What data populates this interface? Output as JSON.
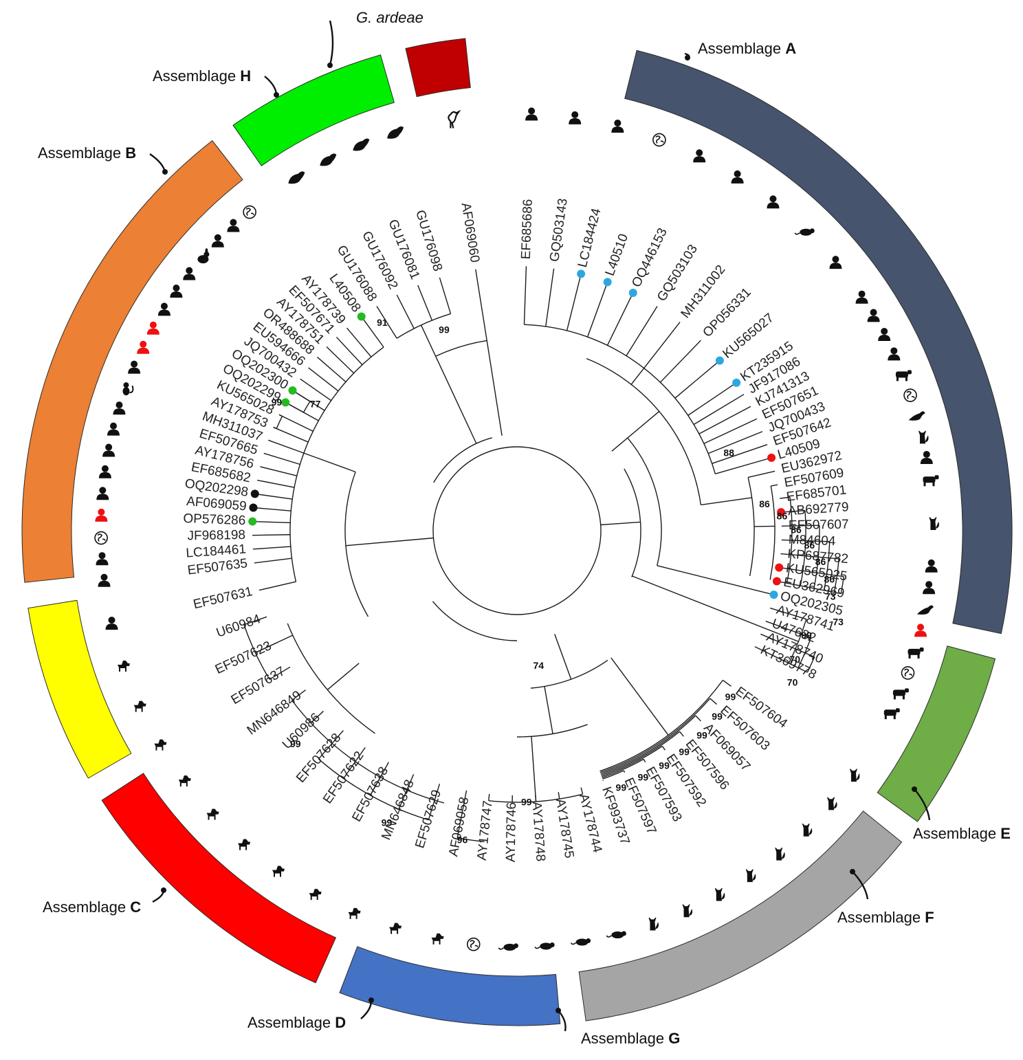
{
  "colors": {
    "A": "#46546d",
    "B": "#ec8034",
    "C": "#ffff00",
    "D": "#ff0000",
    "E": "#6fad47",
    "F": "#a5a5a5",
    "G": "#4472c4",
    "H": "#00ee00",
    "ardeae": "#c00000",
    "marker_blue": "#2ea7e0",
    "marker_red": "#ee1111",
    "marker_green": "#22bb22",
    "marker_black": "#111111",
    "host_red": "#ee1111",
    "host_black": "#111111"
  },
  "assemblages": [
    {
      "id": "A",
      "prefix": "Assemblage ",
      "letter": "A",
      "color": "#46546d",
      "from": 14,
      "to": 102
    },
    {
      "id": "E",
      "prefix": "Assemblage ",
      "letter": "E",
      "color": "#6fad47",
      "from": 105,
      "to": 126
    },
    {
      "id": "F",
      "prefix": "Assemblage ",
      "letter": "F",
      "color": "#a5a5a5",
      "from": 129,
      "to": 172
    },
    {
      "id": "G",
      "prefix": "Assemblage ",
      "letter": "G",
      "color": "#4472c4",
      "from": 175,
      "to": 201
    },
    {
      "id": "D",
      "prefix": "Assemblage ",
      "letter": "D",
      "color": "#ff0000",
      "from": 204,
      "to": 237
    },
    {
      "id": "C",
      "prefix": "Assemblage ",
      "letter": "C",
      "color": "#ffff00",
      "from": 240,
      "to": 261
    },
    {
      "id": "B",
      "prefix": "Assemblage ",
      "letter": "B",
      "color": "#ec8034",
      "from": 264,
      "to": 322
    },
    {
      "id": "H",
      "prefix": "Assemblage ",
      "letter": "H",
      "color": "#00ee00",
      "from": 325,
      "to": 344
    },
    {
      "id": "ardeae",
      "prefix": "",
      "letter": "",
      "italic": "G. ardeae",
      "color": "#c00000",
      "from": 347,
      "to": 354
    }
  ],
  "leaves": [
    {
      "id": "EF685686",
      "angle": 2,
      "marker": "",
      "host": "human",
      "hc": "black"
    },
    {
      "id": "GQ503143",
      "angle": 8,
      "marker": "",
      "host": "human",
      "hc": "black"
    },
    {
      "id": "LC184424",
      "angle": 14,
      "marker": "blue",
      "host": "human",
      "hc": "black"
    },
    {
      "id": "L40510",
      "angle": 20,
      "marker": "blue",
      "host": "world",
      "hc": "black"
    },
    {
      "id": "OQ446153",
      "angle": 26,
      "marker": "blue",
      "host": "human",
      "hc": "black"
    },
    {
      "id": "GQ503103",
      "angle": 32,
      "marker": "",
      "host": "human",
      "hc": "black"
    },
    {
      "id": "MH311002",
      "angle": 38,
      "marker": "",
      "host": "human",
      "hc": "black"
    },
    {
      "id": "OP056331",
      "angle": 44,
      "marker": "",
      "host": "rodent",
      "hc": "black"
    },
    {
      "id": "KU565027",
      "angle": 50,
      "marker": "blue",
      "host": "human",
      "hc": "black"
    },
    {
      "id": "KT235915",
      "angle": 56,
      "marker": "blue",
      "host": "human",
      "hc": "black"
    },
    {
      "id": "JF917086",
      "angle": 59,
      "marker": "",
      "host": "human",
      "hc": "black"
    },
    {
      "id": "KJ741313",
      "angle": 62,
      "marker": "",
      "host": "human",
      "hc": "black"
    },
    {
      "id": "EF507651",
      "angle": 65,
      "marker": "",
      "host": "human",
      "hc": "black"
    },
    {
      "id": "JQ700433",
      "angle": 68,
      "marker": "",
      "host": "cow",
      "hc": "black"
    },
    {
      "id": "EF507642",
      "angle": 71,
      "marker": "",
      "host": "world",
      "hc": "black"
    },
    {
      "id": "L40509",
      "angle": 74,
      "marker": "red",
      "host": "seal",
      "hc": "black"
    },
    {
      "id": "EU362972",
      "angle": 77,
      "marker": "",
      "host": "cat",
      "hc": "black"
    },
    {
      "id": "EF507609",
      "angle": 80,
      "marker": "",
      "host": "human",
      "hc": "black"
    },
    {
      "id": "EF685701",
      "angle": 83,
      "marker": "",
      "host": "sheep",
      "hc": "black"
    },
    {
      "id": "AB692779",
      "angle": 86,
      "marker": "red",
      "host": "",
      "hc": "black"
    },
    {
      "id": "EF507607",
      "angle": 89,
      "marker": "",
      "host": "cat",
      "hc": "black"
    },
    {
      "id": "M84604",
      "angle": 92,
      "marker": "",
      "host": "",
      "hc": "black"
    },
    {
      "id": "KP687782",
      "angle": 95,
      "marker": "",
      "host": "human",
      "hc": "black"
    },
    {
      "id": "KU565025",
      "angle": 98,
      "marker": "red",
      "host": "human",
      "hc": "black"
    },
    {
      "id": "EU362969",
      "angle": 101,
      "marker": "red",
      "host": "seal",
      "hc": "black"
    },
    {
      "id": "OQ202305",
      "angle": 104,
      "marker": "blue",
      "host": "human",
      "hc": "red"
    },
    {
      "id": "AY178741",
      "angle": 107,
      "marker": "",
      "host": "pig",
      "hc": "black"
    },
    {
      "id": "U47632",
      "angle": 110,
      "marker": "",
      "host": "world",
      "hc": "black"
    },
    {
      "id": "AY178740",
      "angle": 113,
      "marker": "",
      "host": "cow",
      "hc": "black"
    },
    {
      "id": "KT369778",
      "angle": 116,
      "marker": "",
      "host": "cow",
      "hc": "black"
    },
    {
      "id": "EF507604",
      "angle": 126,
      "marker": "",
      "host": "cat",
      "hc": "black"
    },
    {
      "id": "EF507603",
      "angle": 131,
      "marker": "",
      "host": "cat",
      "hc": "black"
    },
    {
      "id": "AF069057",
      "angle": 136,
      "marker": "",
      "host": "cat",
      "hc": "black"
    },
    {
      "id": "EF507596",
      "angle": 141,
      "marker": "",
      "host": "cat",
      "hc": "black"
    },
    {
      "id": "EF507592",
      "angle": 146,
      "marker": "",
      "host": "cat",
      "hc": "black"
    },
    {
      "id": "EF507593",
      "angle": 151,
      "marker": "",
      "host": "cat",
      "hc": "black"
    },
    {
      "id": "EF507597",
      "angle": 156,
      "marker": "",
      "host": "cat",
      "hc": "black"
    },
    {
      "id": "KF993737",
      "angle": 161,
      "marker": "",
      "host": "cat",
      "hc": "black"
    },
    {
      "id": "AY178744",
      "angle": 166,
      "marker": "",
      "host": "rodent",
      "hc": "black"
    },
    {
      "id": "AY178745",
      "angle": 171,
      "marker": "",
      "host": "rodent",
      "hc": "black"
    },
    {
      "id": "AY178748",
      "angle": 176,
      "marker": "",
      "host": "rodent",
      "hc": "black"
    },
    {
      "id": "AY178746",
      "angle": 181,
      "marker": "",
      "host": "rodent",
      "hc": "black"
    },
    {
      "id": "AY178747",
      "angle": 186,
      "marker": "",
      "host": "world",
      "hc": "black"
    },
    {
      "id": "AF069058",
      "angle": 191,
      "marker": "",
      "host": "dog",
      "hc": "black"
    },
    {
      "id": "EF507629",
      "angle": 197,
      "marker": "",
      "host": "dog",
      "hc": "black"
    },
    {
      "id": "MN646848",
      "angle": 203,
      "marker": "",
      "host": "dog",
      "hc": "black"
    },
    {
      "id": "EF507638",
      "angle": 209,
      "marker": "",
      "host": "dog",
      "hc": "black"
    },
    {
      "id": "EF507622",
      "angle": 215,
      "marker": "",
      "host": "dog",
      "hc": "black"
    },
    {
      "id": "EF507628",
      "angle": 221,
      "marker": "",
      "host": "dog",
      "hc": "black"
    },
    {
      "id": "U60986",
      "angle": 227,
      "marker": "",
      "host": "dog",
      "hc": "black"
    },
    {
      "id": "MN646849",
      "angle": 233,
      "marker": "",
      "host": "dog",
      "hc": "black"
    },
    {
      "id": "EF507637",
      "angle": 239,
      "marker": "",
      "host": "dog",
      "hc": "black"
    },
    {
      "id": "EF507623",
      "angle": 245,
      "marker": "",
      "host": "dog",
      "hc": "black"
    },
    {
      "id": "U60984",
      "angle": 251,
      "marker": "",
      "host": "dog",
      "hc": "black"
    },
    {
      "id": "EF507631",
      "angle": 257,
      "marker": "",
      "host": "human",
      "hc": "black"
    },
    {
      "id": "EF507635",
      "angle": 263,
      "marker": "",
      "host": "human",
      "hc": "black"
    },
    {
      "id": "LC184461",
      "angle": 266,
      "marker": "",
      "host": "human",
      "hc": "black"
    },
    {
      "id": "JF968198",
      "angle": 269,
      "marker": "",
      "host": "world",
      "hc": "black"
    },
    {
      "id": "OP576286",
      "angle": 272,
      "marker": "green",
      "host": "human",
      "hc": "red"
    },
    {
      "id": "AF069059",
      "angle": 275,
      "marker": "black",
      "host": "human",
      "hc": "black"
    },
    {
      "id": "OQ202298",
      "angle": 278,
      "marker": "black",
      "host": "human",
      "hc": "black"
    },
    {
      "id": "EF685682",
      "angle": 281,
      "marker": "",
      "host": "human",
      "hc": "black"
    },
    {
      "id": "AY178756",
      "angle": 284,
      "marker": "",
      "host": "human",
      "hc": "black"
    },
    {
      "id": "EF507665",
      "angle": 287,
      "marker": "",
      "host": "human",
      "hc": "black"
    },
    {
      "id": "MH311037",
      "angle": 290,
      "marker": "",
      "host": "monkey",
      "hc": "black"
    },
    {
      "id": "AY178753",
      "angle": 293,
      "marker": "",
      "host": "human",
      "hc": "black"
    },
    {
      "id": "KU565028",
      "angle": 296,
      "marker": "",
      "host": "human",
      "hc": "red"
    },
    {
      "id": "OQ202299",
      "angle": 299,
      "marker": "green",
      "host": "human",
      "hc": "red"
    },
    {
      "id": "OQ202300",
      "angle": 302,
      "marker": "green",
      "host": "human",
      "hc": "black"
    },
    {
      "id": "JQ700432",
      "angle": 305,
      "marker": "",
      "host": "human",
      "hc": "black"
    },
    {
      "id": "EU594666",
      "angle": 308,
      "marker": "",
      "host": "human",
      "hc": "black"
    },
    {
      "id": "OR488688",
      "angle": 311,
      "marker": "",
      "host": "chinchilla",
      "hc": "black"
    },
    {
      "id": "AY178751",
      "angle": 314,
      "marker": "",
      "host": "human",
      "hc": "black"
    },
    {
      "id": "EF507671",
      "angle": 317,
      "marker": "",
      "host": "human",
      "hc": "black"
    },
    {
      "id": "AY178739",
      "angle": 320,
      "marker": "",
      "host": "world",
      "hc": "black"
    },
    {
      "id": "L40508",
      "angle": 324,
      "marker": "green",
      "host": "",
      "hc": "black"
    },
    {
      "id": "GU176088",
      "angle": 328,
      "marker": "",
      "host": "muskrat",
      "hc": "black"
    },
    {
      "id": "GU176092",
      "angle": 333,
      "marker": "",
      "host": "muskrat",
      "hc": "black"
    },
    {
      "id": "GU176081",
      "angle": 338,
      "marker": "",
      "host": "muskrat",
      "hc": "black"
    },
    {
      "id": "GU176098",
      "angle": 343,
      "marker": "",
      "host": "muskrat",
      "hc": "black"
    },
    {
      "id": "AF069060",
      "angle": 351,
      "marker": "",
      "host": "heron",
      "hc": "black"
    }
  ],
  "bootstrap": [
    {
      "v": "99",
      "angle": 340,
      "r": 310
    },
    {
      "v": "91",
      "angle": 327,
      "r": 360
    },
    {
      "v": "77",
      "angle": 302,
      "r": 346
    },
    {
      "v": "99",
      "angle": 298,
      "r": 396
    },
    {
      "v": "88",
      "angle": 70,
      "r": 328
    },
    {
      "v": "86",
      "angle": 84,
      "r": 362
    },
    {
      "v": "86",
      "angle": 87,
      "r": 386
    },
    {
      "v": "86",
      "angle": 90,
      "r": 406
    },
    {
      "v": "86",
      "angle": 93,
      "r": 426
    },
    {
      "v": "86",
      "angle": 96,
      "r": 444
    },
    {
      "v": "86",
      "angle": 99,
      "r": 460
    },
    {
      "v": "73",
      "angle": 102,
      "r": 466
    },
    {
      "v": "73",
      "angle": 106,
      "r": 486
    },
    {
      "v": "74",
      "angle": 171,
      "r": 200
    },
    {
      "v": "99",
      "angle": 110,
      "r": 448
    },
    {
      "v": "70",
      "angle": 115,
      "r": 446
    },
    {
      "v": "70",
      "angle": 119,
      "r": 458
    },
    {
      "v": "99",
      "angle": 128,
      "r": 394
    },
    {
      "v": "99",
      "angle": 133,
      "r": 398
    },
    {
      "v": "99",
      "angle": 138,
      "r": 402
    },
    {
      "v": "99",
      "angle": 143,
      "r": 404
    },
    {
      "v": "99",
      "angle": 148,
      "r": 404
    },
    {
      "v": "99",
      "angle": 153,
      "r": 404
    },
    {
      "v": "99",
      "angle": 158,
      "r": 404
    },
    {
      "v": "99",
      "angle": 178,
      "r": 396
    },
    {
      "v": "96",
      "angle": 190,
      "r": 458
    },
    {
      "v": "99",
      "angle": 204,
      "r": 466
    },
    {
      "v": "99",
      "angle": 226,
      "r": 448
    }
  ]
}
